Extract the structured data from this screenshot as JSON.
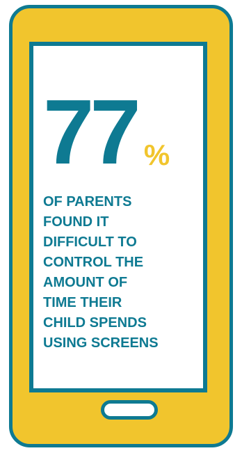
{
  "stat": {
    "number": "77",
    "percent_sign": "%"
  },
  "caption": {
    "lines": [
      "OF PARENTS",
      "FOUND IT",
      "DIFFICULT TO",
      "CONTROL THE",
      "AMOUNT OF",
      "TIME THEIR",
      "CHILD SPENDS",
      "USING SCREENS"
    ]
  },
  "colors": {
    "teal": "#0E7A92",
    "yellow": "#F1C52D",
    "screen": "#FFFFFF"
  },
  "icons": {
    "device": "smartphone-icon",
    "home_button": "home-button-icon"
  }
}
